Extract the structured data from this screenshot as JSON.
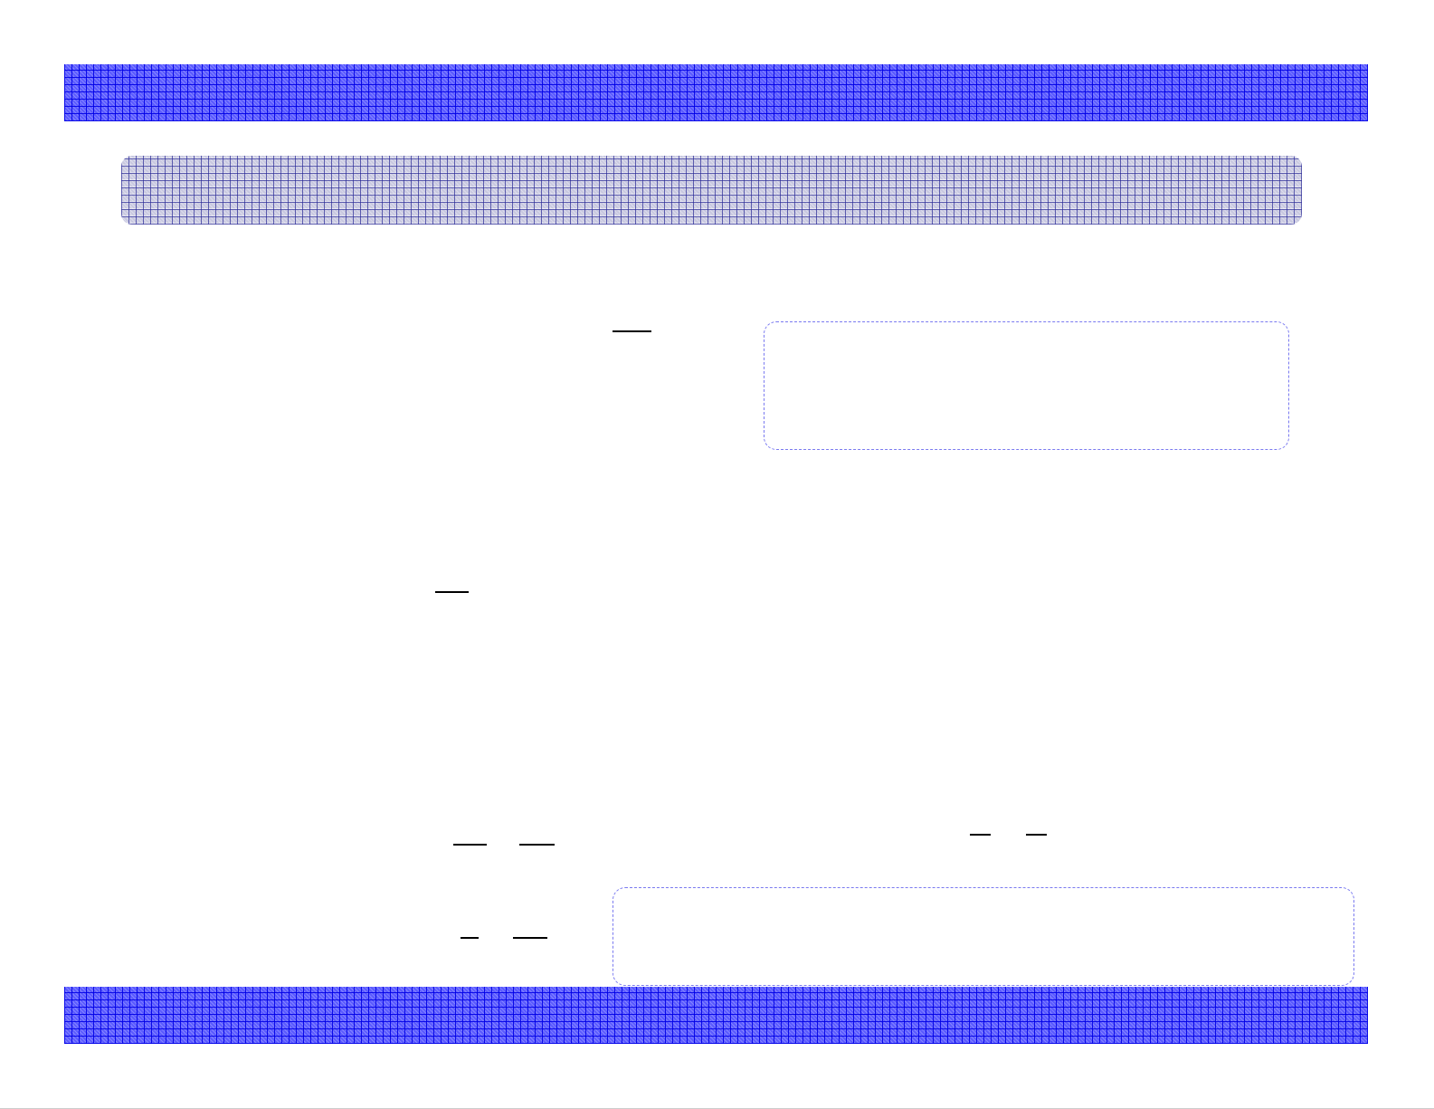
{
  "colors": {
    "banner": "#5a5aff",
    "header_box": "#c8c8e0",
    "dashed_border": "#7a7af0"
  }
}
